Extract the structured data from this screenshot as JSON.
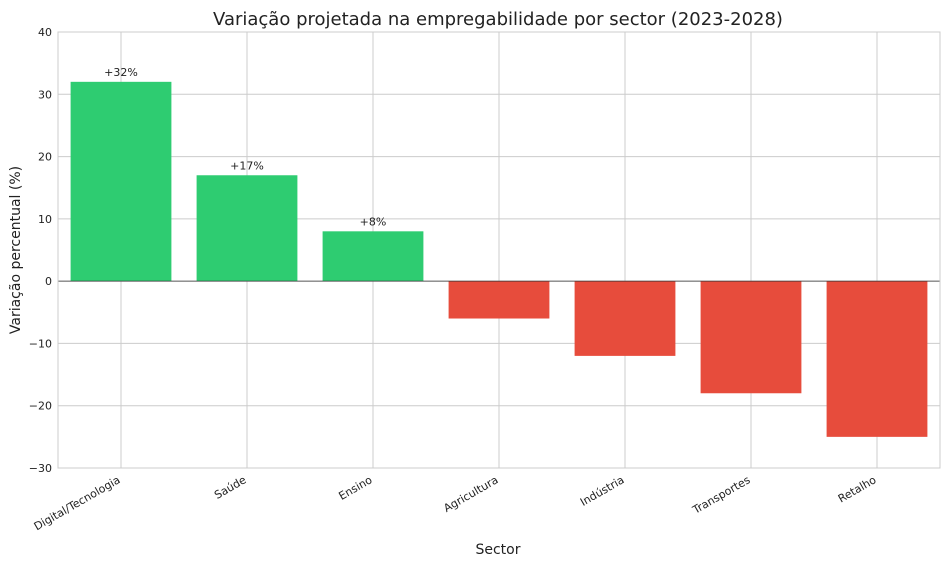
{
  "chart_data": {
    "type": "bar",
    "title": "Variação projetada na empregabilidade por sector (2023-2028)",
    "xlabel": "Sector",
    "ylabel": "Variação percentual (%)",
    "categories": [
      "Digital/Tecnologia",
      "Saúde",
      "Ensino",
      "Agricultura",
      "Indústria",
      "Transportes",
      "Retalho"
    ],
    "values": [
      32,
      17,
      8,
      -6,
      -12,
      -18,
      -25
    ],
    "data_labels": [
      "+32%",
      "+17%",
      "+8%",
      "",
      "",
      "",
      ""
    ],
    "ylim": [
      -30,
      40
    ],
    "yticks": [
      -30,
      -20,
      -10,
      0,
      10,
      20,
      30,
      40
    ],
    "ytick_labels": [
      "−30",
      "−20",
      "−10",
      "0",
      "10",
      "20",
      "30",
      "40"
    ],
    "grid": true,
    "colors": {
      "positive": "#2ecc71",
      "negative": "#e74c3c",
      "grid": "#cccccc",
      "zero_line": "#333333",
      "spine": "#cccccc"
    }
  }
}
